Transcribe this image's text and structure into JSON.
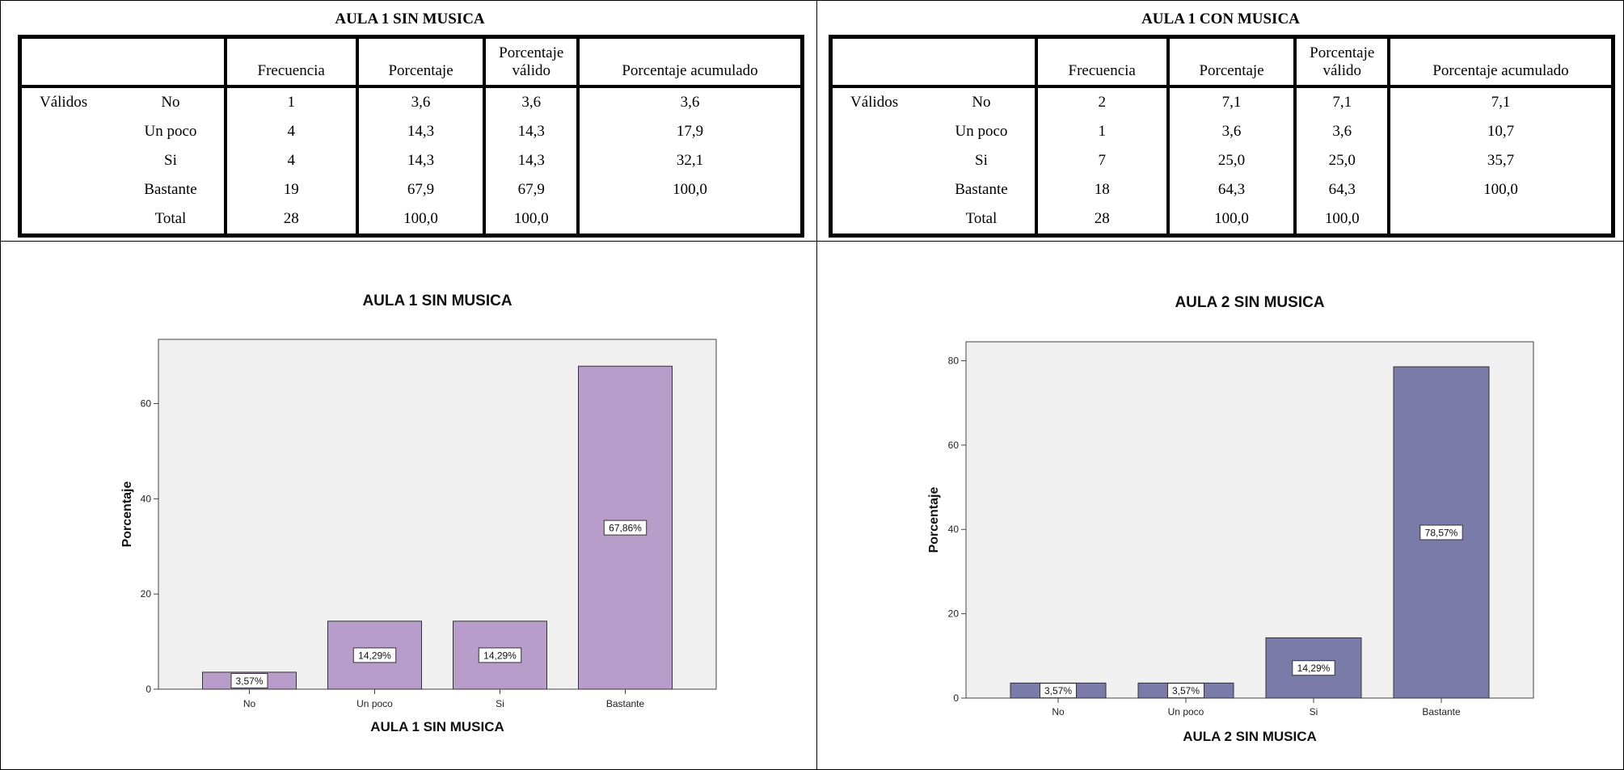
{
  "tables": [
    {
      "title": "AULA 1 SIN MUSICA",
      "headers": [
        "",
        "",
        "Frecuencia",
        "Porcentaje",
        "Porcentaje válido",
        "Porcentaje acumulado"
      ],
      "rows": [
        {
          "group": "Válidos",
          "label": "No",
          "freq": "1",
          "pct": "3,6",
          "valid": "3,6",
          "cum": "3,6"
        },
        {
          "group": "",
          "label": "Un poco",
          "freq": "4",
          "pct": "14,3",
          "valid": "14,3",
          "cum": "17,9"
        },
        {
          "group": "",
          "label": "Si",
          "freq": "4",
          "pct": "14,3",
          "valid": "14,3",
          "cum": "32,1"
        },
        {
          "group": "",
          "label": "Bastante",
          "freq": "19",
          "pct": "67,9",
          "valid": "67,9",
          "cum": "100,0"
        },
        {
          "group": "",
          "label": "Total",
          "freq": "28",
          "pct": "100,0",
          "valid": "100,0",
          "cum": ""
        }
      ]
    },
    {
      "title": "AULA 1 CON MUSICA",
      "headers": [
        "",
        "",
        "Frecuencia",
        "Porcentaje",
        "Porcentaje válido",
        "Porcentaje acumulado"
      ],
      "rows": [
        {
          "group": "Válidos",
          "label": "No",
          "freq": "2",
          "pct": "7,1",
          "valid": "7,1",
          "cum": "7,1"
        },
        {
          "group": "",
          "label": "Un poco",
          "freq": "1",
          "pct": "3,6",
          "valid": "3,6",
          "cum": "10,7"
        },
        {
          "group": "",
          "label": "Si",
          "freq": "7",
          "pct": "25,0",
          "valid": "25,0",
          "cum": "35,7"
        },
        {
          "group": "",
          "label": "Bastante",
          "freq": "18",
          "pct": "64,3",
          "valid": "64,3",
          "cum": "100,0"
        },
        {
          "group": "",
          "label": "Total",
          "freq": "28",
          "pct": "100,0",
          "valid": "100,0",
          "cum": ""
        }
      ]
    }
  ],
  "chart_data": [
    {
      "type": "bar",
      "title": "AULA 1 SIN MUSICA",
      "xlabel": "AULA 1 SIN MUSICA",
      "ylabel": "Porcentaje",
      "categories": [
        "No",
        "Un poco",
        "Si",
        "Bastante"
      ],
      "values": [
        3.57,
        14.29,
        14.29,
        67.86
      ],
      "data_labels": [
        "3,57%",
        "14,29%",
        "14,29%",
        "67,86%"
      ],
      "yticks": [
        0,
        20,
        40,
        60
      ],
      "ylim": [
        0,
        73.5
      ],
      "bar_color": "#b89cc9",
      "background": "#f0f0f0",
      "grid": false,
      "legend": "none"
    },
    {
      "type": "bar",
      "title": "AULA 2 SIN MUSICA",
      "xlabel": "AULA 2 SIN MUSICA",
      "ylabel": "Porcentaje",
      "categories": [
        "No",
        "Un poco",
        "Si",
        "Bastante"
      ],
      "values": [
        3.57,
        3.57,
        14.29,
        78.57
      ],
      "data_labels": [
        "3,57%",
        "3,57%",
        "14,29%",
        "78,57%"
      ],
      "yticks": [
        0,
        20,
        40,
        60,
        80
      ],
      "ylim": [
        0,
        84.5
      ],
      "bar_color": "#7b7ba9",
      "background": "#f0f0f0",
      "grid": false,
      "legend": "none"
    }
  ]
}
